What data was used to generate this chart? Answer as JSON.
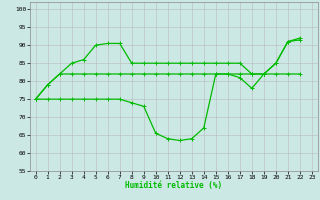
{
  "title": "",
  "xlabel": "Humidité relative (%)",
  "background_color": "#cce8e4",
  "grid_color": "#bbbbbb",
  "line_color": "#00bb00",
  "xlim": [
    -0.5,
    23.5
  ],
  "ylim": [
    55,
    102
  ],
  "yticks": [
    55,
    60,
    65,
    70,
    75,
    80,
    85,
    90,
    95,
    100
  ],
  "xticks": [
    0,
    1,
    2,
    3,
    4,
    5,
    6,
    7,
    8,
    9,
    10,
    11,
    12,
    13,
    14,
    15,
    16,
    17,
    18,
    19,
    20,
    21,
    22,
    23
  ],
  "series": [
    [
      75,
      79,
      82,
      85,
      86,
      90,
      90.5,
      90.5,
      85,
      85,
      85,
      85,
      85,
      85,
      85,
      85,
      85,
      85,
      82,
      82,
      85,
      91,
      91.5
    ],
    [
      75,
      79,
      82,
      82,
      82,
      82,
      82,
      82,
      82,
      82,
      82,
      82,
      82,
      82,
      82,
      82,
      82,
      82,
      82,
      82,
      82,
      82,
      82
    ],
    [
      75,
      75,
      75,
      75,
      75,
      75,
      75,
      75,
      74,
      73,
      65.5,
      64,
      63.5,
      64,
      67,
      82,
      82,
      81,
      78,
      82,
      85,
      91,
      92
    ]
  ],
  "xlabel_fontsize": 5.5,
  "xlabel_color": "#00bb00",
  "tick_fontsize": 4.5,
  "linewidth": 0.9,
  "markersize": 3.0
}
